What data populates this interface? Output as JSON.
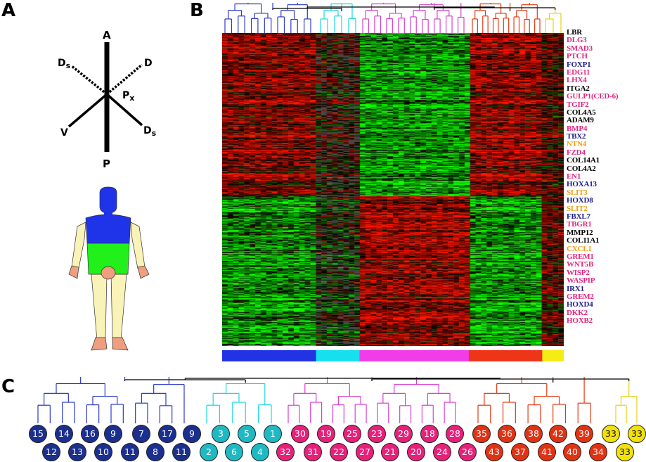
{
  "panels": {
    "a": "A",
    "b": "B",
    "c": "C"
  },
  "axes": {
    "top": "A",
    "bottom": "P",
    "upper_left": "D",
    "upper_left_sub": "s",
    "upper_right": "D",
    "lower_left": "V",
    "lower_right": "D",
    "lower_right_sub": "s",
    "center": "P",
    "center_sub": "x"
  },
  "colors": {
    "blue": "#1b2f8f",
    "cyan": "#1fb9c4",
    "pink": "#e8207a",
    "red": "#e23214",
    "yellow": "#f3e20a",
    "magenta_tree": "#d640d0",
    "blue_tree": "#2a3ac8",
    "cyan_tree": "#19d8e0",
    "red_tree": "#e43a12",
    "yellow_tree": "#e8d010",
    "gene_black": "#000000",
    "gene_pink": "#e0257d",
    "gene_navy": "#1c1c8c",
    "gene_orange": "#f0a010"
  },
  "cluster_bar": [
    {
      "cluster": "blue",
      "fraction": 0.275
    },
    {
      "cluster": "cyan",
      "fraction": 0.127
    },
    {
      "cluster": "magenta",
      "fraction": 0.32
    },
    {
      "cluster": "red",
      "fraction": 0.215
    },
    {
      "cluster": "yellow",
      "fraction": 0.063
    }
  ],
  "genes": [
    {
      "name": "LBR",
      "color": "black"
    },
    {
      "name": "DLG3",
      "color": "pink"
    },
    {
      "name": "SMAD3",
      "color": "pink"
    },
    {
      "name": "PTCH",
      "color": "pink"
    },
    {
      "name": "FOXP1",
      "color": "navy"
    },
    {
      "name": "EDG11",
      "color": "pink"
    },
    {
      "name": "LHX4",
      "color": "pink"
    },
    {
      "name": "ITGA2",
      "color": "black"
    },
    {
      "name": "GULP1(CED-6)",
      "color": "pink"
    },
    {
      "name": "TGIF2",
      "color": "pink"
    },
    {
      "name": "COL4A5",
      "color": "black"
    },
    {
      "name": "ADAM9",
      "color": "black"
    },
    {
      "name": "BMP4",
      "color": "pink"
    },
    {
      "name": "TBX2",
      "color": "navy"
    },
    {
      "name": "NTN4",
      "color": "orange"
    },
    {
      "name": "FZD4",
      "color": "pink"
    },
    {
      "name": "COL14A1",
      "color": "black"
    },
    {
      "name": "COL4A2",
      "color": "black"
    },
    {
      "name": "EN1",
      "color": "pink"
    },
    {
      "name": "HOXA13",
      "color": "navy"
    },
    {
      "name": "SLIT3",
      "color": "orange"
    },
    {
      "name": "HOXD8",
      "color": "navy"
    },
    {
      "name": "SLIT2",
      "color": "orange"
    },
    {
      "name": "FBXL7",
      "color": "navy"
    },
    {
      "name": "TBGR1",
      "color": "pink"
    },
    {
      "name": "MMP12",
      "color": "black"
    },
    {
      "name": "COL11A1",
      "color": "black"
    },
    {
      "name": "CXCL1",
      "color": "orange"
    },
    {
      "name": "GREM1",
      "color": "pink"
    },
    {
      "name": "WNT5B",
      "color": "pink"
    },
    {
      "name": "WISP2",
      "color": "pink"
    },
    {
      "name": "WASPIP",
      "color": "pink"
    },
    {
      "name": "IRX1",
      "color": "navy"
    },
    {
      "name": "GREM2",
      "color": "pink"
    },
    {
      "name": "HOXD4",
      "color": "navy"
    },
    {
      "name": "DKK2",
      "color": "pink"
    },
    {
      "name": "HOXB2",
      "color": "pink"
    }
  ],
  "samples_top": [
    {
      "label": "15",
      "group": "blue"
    },
    {
      "label": "14",
      "group": "blue"
    },
    {
      "label": "16",
      "group": "blue"
    },
    {
      "label": "9",
      "group": "blue"
    },
    {
      "label": "7",
      "group": "blue"
    },
    {
      "label": "17",
      "group": "blue"
    },
    {
      "label": "9",
      "group": "blue"
    },
    {
      "label": "3",
      "group": "cyan"
    },
    {
      "label": "5",
      "group": "cyan"
    },
    {
      "label": "1",
      "group": "cyan"
    },
    {
      "label": "30",
      "group": "pink"
    },
    {
      "label": "19",
      "group": "pink"
    },
    {
      "label": "25",
      "group": "pink"
    },
    {
      "label": "23",
      "group": "pink"
    },
    {
      "label": "29",
      "group": "pink"
    },
    {
      "label": "18",
      "group": "pink"
    },
    {
      "label": "28",
      "group": "pink"
    },
    {
      "label": "35",
      "group": "red"
    },
    {
      "label": "36",
      "group": "red"
    },
    {
      "label": "38",
      "group": "red"
    },
    {
      "label": "42",
      "group": "red"
    },
    {
      "label": "39",
      "group": "red"
    },
    {
      "label": "33",
      "group": "yellow"
    },
    {
      "label": "33",
      "group": "yellow"
    }
  ],
  "samples_bottom": [
    {
      "label": "12",
      "group": "blue"
    },
    {
      "label": "13",
      "group": "blue"
    },
    {
      "label": "10",
      "group": "blue"
    },
    {
      "label": "11",
      "group": "blue"
    },
    {
      "label": "8",
      "group": "blue"
    },
    {
      "label": "11",
      "group": "blue"
    },
    {
      "label": "2",
      "group": "cyan"
    },
    {
      "label": "6",
      "group": "cyan"
    },
    {
      "label": "4",
      "group": "cyan"
    },
    {
      "label": "32",
      "group": "pink"
    },
    {
      "label": "31",
      "group": "pink"
    },
    {
      "label": "22",
      "group": "pink"
    },
    {
      "label": "27",
      "group": "pink"
    },
    {
      "label": "21",
      "group": "pink"
    },
    {
      "label": "20",
      "group": "pink"
    },
    {
      "label": "24",
      "group": "pink"
    },
    {
      "label": "26",
      "group": "pink"
    },
    {
      "label": "43",
      "group": "red"
    },
    {
      "label": "37",
      "group": "red"
    },
    {
      "label": "41",
      "group": "red"
    },
    {
      "label": "40",
      "group": "red"
    },
    {
      "label": "34",
      "group": "red"
    },
    {
      "label": "33",
      "group": "yellow"
    }
  ]
}
